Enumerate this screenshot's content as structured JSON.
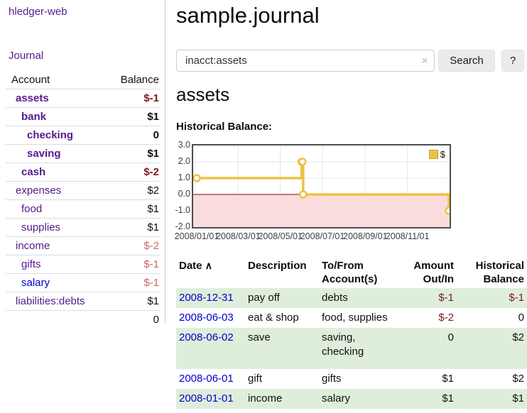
{
  "sidebar": {
    "brand": "hledger-web",
    "journal_label": "Journal",
    "accounts_table": {
      "headers": {
        "account": "Account",
        "balance": "Balance"
      },
      "rows": [
        {
          "name": "assets",
          "balance": "$-1",
          "depth": 1,
          "matched": true,
          "balance_style": "neg-strong"
        },
        {
          "name": "bank",
          "balance": "$1",
          "depth": 2,
          "matched": true,
          "balance_style": "plain"
        },
        {
          "name": "checking",
          "balance": "0",
          "depth": 3,
          "matched": true,
          "balance_style": "plain"
        },
        {
          "name": "saving",
          "balance": "$1",
          "depth": 3,
          "matched": true,
          "balance_style": "plain"
        },
        {
          "name": "cash",
          "balance": "$-2",
          "depth": 2,
          "matched": true,
          "balance_style": "neg-strong"
        },
        {
          "name": "expenses",
          "balance": "$2",
          "depth": 1,
          "matched": false,
          "balance_style": "plain"
        },
        {
          "name": "food",
          "balance": "$1",
          "depth": 2,
          "matched": false,
          "balance_style": "plain"
        },
        {
          "name": "supplies",
          "balance": "$1",
          "depth": 2,
          "matched": false,
          "balance_style": "plain"
        },
        {
          "name": "income",
          "balance": "$-2",
          "depth": 1,
          "matched": false,
          "balance_style": "neg-soft"
        },
        {
          "name": "gifts",
          "balance": "$-1",
          "depth": 2,
          "matched": false,
          "balance_style": "neg-soft"
        },
        {
          "name": "salary",
          "balance": "$-1",
          "depth": 2,
          "matched": false,
          "balance_style": "neg-soft",
          "link_style": "unvisited"
        },
        {
          "name": "liabilities:debts",
          "balance": "$1",
          "depth": 1,
          "matched": false,
          "balance_style": "plain"
        }
      ],
      "total": "0"
    }
  },
  "main": {
    "title": "sample.journal",
    "search": {
      "value": "inacct:assets",
      "clear_icon": "×",
      "button_label": "Search",
      "help_label": "?"
    },
    "account_heading": "assets",
    "chart_title": "Historical Balance:"
  },
  "chart_data": {
    "type": "line",
    "title": "Historical Balance:",
    "series": [
      {
        "name": "$",
        "points": [
          [
            "2008-01-01",
            1
          ],
          [
            "2008-06-01",
            2
          ],
          [
            "2008-06-02",
            2
          ],
          [
            "2008-06-03",
            0
          ],
          [
            "2008-12-31",
            -1
          ]
        ]
      }
    ],
    "x_ticks": [
      "2008/01/01",
      "2008/03/01",
      "2008/05/01",
      "2008/07/01",
      "2008/09/01",
      "2008/11/01"
    ],
    "y_ticks": [
      "3.0",
      "2.0",
      "1.0",
      "0.0",
      "-1.0",
      "-2.0"
    ],
    "xlim": [
      "2008-01-01",
      "2008-12-31"
    ],
    "ylim": [
      -2,
      3
    ],
    "grid": true,
    "legend_position": "top-right",
    "step_line": true,
    "line_color": "#EDC240",
    "marker_fill": "#ffffff",
    "gridline_color": "#e6e6e6",
    "negative_region_color": "#fbdcdc",
    "zero_line_color": "#800000"
  },
  "transactions": {
    "headers": {
      "date": "Date",
      "description": "Description",
      "tofrom": "To/From Account(s)",
      "amount": "Amount Out/In",
      "balance": "Historical Balance"
    },
    "sort_icon": "∧",
    "rows": [
      {
        "date": "2008-12-31",
        "description": "pay off",
        "tofrom": "debts",
        "amount": "$-1",
        "amount_negative": true,
        "balance": "$-1",
        "balance_negative": true,
        "tall": false
      },
      {
        "date": "2008-06-03",
        "description": "eat & shop",
        "tofrom": "food, supplies",
        "amount": "$-2",
        "amount_negative": true,
        "balance": "0",
        "balance_negative": false,
        "tall": false
      },
      {
        "date": "2008-06-02",
        "description": "save",
        "tofrom": "saving, checking",
        "amount": "0",
        "amount_negative": false,
        "balance": "$2",
        "balance_negative": false,
        "tall": true
      },
      {
        "date": "2008-06-01",
        "description": "gift",
        "tofrom": "gifts",
        "amount": "$1",
        "amount_negative": false,
        "balance": "$2",
        "balance_negative": false,
        "tall": false
      },
      {
        "date": "2008-01-01",
        "description": "income",
        "tofrom": "salary",
        "amount": "$1",
        "amount_negative": false,
        "balance": "$1",
        "balance_negative": false,
        "tall": false
      }
    ]
  }
}
